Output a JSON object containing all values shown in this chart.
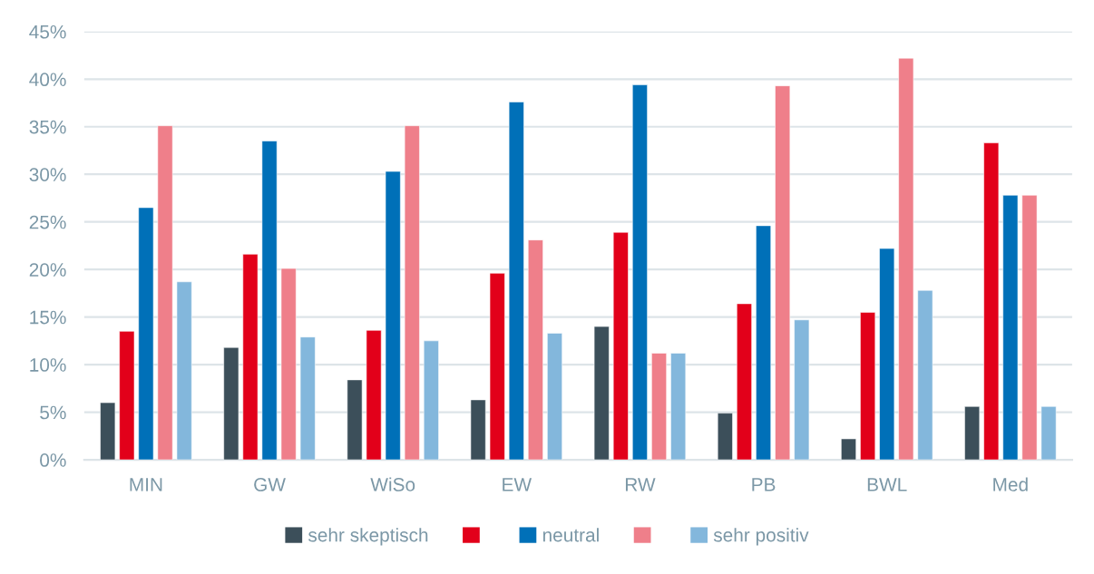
{
  "chart_data": {
    "type": "bar",
    "categories": [
      "MIN",
      "GW",
      "WiSo",
      "EW",
      "RW",
      "PB",
      "BWL",
      "Med"
    ],
    "series": [
      {
        "name": "sehr skeptisch",
        "color": "#3c4f5a",
        "values": [
          6.0,
          11.8,
          8.4,
          6.3,
          14.0,
          4.9,
          2.2,
          5.6
        ]
      },
      {
        "color": "#e2001a",
        "values": [
          13.5,
          21.6,
          13.6,
          19.6,
          23.9,
          16.4,
          15.5,
          33.3
        ]
      },
      {
        "name": "neutral",
        "color": "#0070b8",
        "values": [
          26.5,
          33.5,
          30.3,
          37.6,
          39.4,
          24.6,
          22.2,
          27.8
        ]
      },
      {
        "color": "#ef7f8a",
        "values": [
          35.1,
          20.1,
          35.1,
          23.1,
          11.2,
          39.3,
          42.2,
          27.8
        ]
      },
      {
        "name": "sehr positiv",
        "color": "#83b7dc",
        "values": [
          18.7,
          12.9,
          12.5,
          13.3,
          11.2,
          14.7,
          17.8,
          5.6
        ]
      }
    ],
    "ylim": [
      0,
      45
    ],
    "yticks": [
      {
        "value": 0,
        "label": "0%"
      },
      {
        "value": 5,
        "label": "5%"
      },
      {
        "value": 10,
        "label": "10%"
      },
      {
        "value": 15,
        "label": "15%"
      },
      {
        "value": 20,
        "label": "20%"
      },
      {
        "value": 25,
        "label": "25%"
      },
      {
        "value": 30,
        "label": "30%"
      },
      {
        "value": 35,
        "label": "35%"
      },
      {
        "value": 40,
        "label": "40%"
      },
      {
        "value": 45,
        "label": "45%"
      }
    ],
    "grid": "y",
    "legend": "bottom"
  }
}
